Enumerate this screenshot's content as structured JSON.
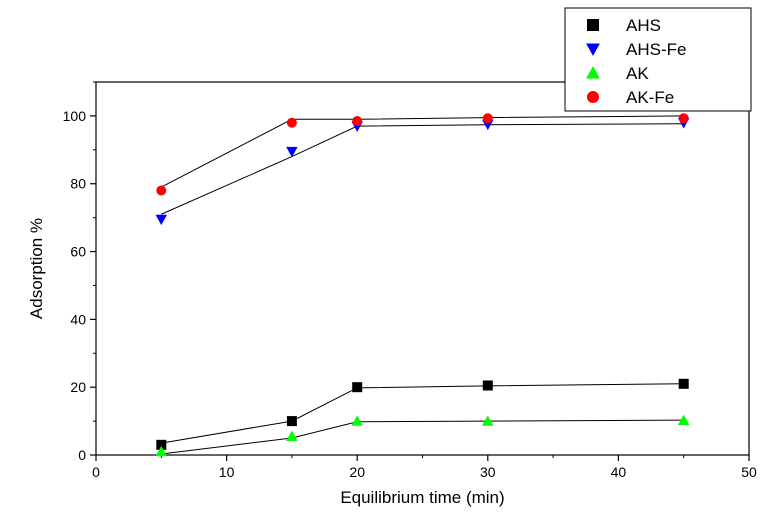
{
  "chart_data": {
    "type": "scatter",
    "xlabel": "Equilibrium time (min)",
    "ylabel": "Adsorption %",
    "xlim": [
      0,
      50
    ],
    "ylim": [
      0,
      110
    ],
    "xticks": [
      "0",
      "10",
      "20",
      "30",
      "40",
      "50"
    ],
    "yticks": [
      "0",
      "20",
      "40",
      "60",
      "80",
      "100"
    ],
    "grid": false,
    "legend_position": "top-right",
    "series": [
      {
        "name": "AHS",
        "marker": "square",
        "color": "#000000",
        "points": [
          [
            5,
            3
          ],
          [
            15,
            10
          ],
          [
            20,
            20
          ],
          [
            30,
            20.5
          ],
          [
            45,
            21
          ]
        ],
        "fit_line": [
          [
            5,
            3.5
          ],
          [
            15,
            10
          ],
          [
            20,
            19.8
          ],
          [
            30,
            20.4
          ],
          [
            45,
            21
          ]
        ]
      },
      {
        "name": "AHS-Fe",
        "marker": "triangle-down",
        "color": "#0000ff",
        "points": [
          [
            5,
            69.5
          ],
          [
            15,
            89.5
          ],
          [
            20,
            97
          ],
          [
            30,
            97.5
          ],
          [
            45,
            98
          ]
        ],
        "fit_line": [
          [
            5,
            71
          ],
          [
            15,
            88
          ],
          [
            20,
            97
          ],
          [
            30,
            97.4
          ],
          [
            45,
            97.7
          ]
        ]
      },
      {
        "name": "AK",
        "marker": "triangle-up",
        "color": "#00ff00",
        "points": [
          [
            5,
            1
          ],
          [
            15,
            5.5
          ],
          [
            20,
            10
          ],
          [
            30,
            10
          ],
          [
            45,
            10.2
          ]
        ],
        "fit_line": [
          [
            5,
            0.3
          ],
          [
            15,
            5
          ],
          [
            20,
            9.8
          ],
          [
            30,
            10
          ],
          [
            45,
            10.3
          ]
        ]
      },
      {
        "name": "AK-Fe",
        "marker": "circle",
        "color": "#ff0000",
        "points": [
          [
            5,
            78
          ],
          [
            15,
            98
          ],
          [
            20,
            98.5
          ],
          [
            30,
            99.3
          ],
          [
            45,
            99.3
          ]
        ],
        "fit_line": [
          [
            5,
            79
          ],
          [
            15,
            99
          ],
          [
            20,
            99
          ],
          [
            30,
            99.5
          ],
          [
            45,
            100
          ]
        ]
      }
    ]
  }
}
